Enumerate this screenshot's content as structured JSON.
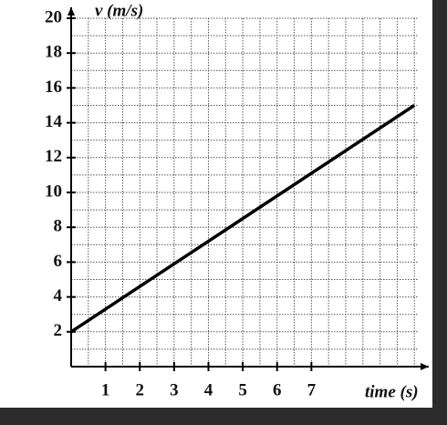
{
  "chart_data": {
    "type": "line",
    "y_label": "v (m/s)",
    "x_label": "time (s)",
    "x": [
      0,
      10
    ],
    "series": [
      {
        "name": "v",
        "color": "#000000",
        "values": [
          2,
          15
        ]
      }
    ],
    "xlim": [
      0,
      10.1
    ],
    "xticks": [
      1,
      2,
      3,
      4,
      5,
      6,
      7
    ],
    "ylim": [
      0,
      20
    ],
    "yticks": [
      2,
      4,
      6,
      8,
      10,
      12,
      14,
      16,
      18,
      20
    ],
    "grid": true
  }
}
